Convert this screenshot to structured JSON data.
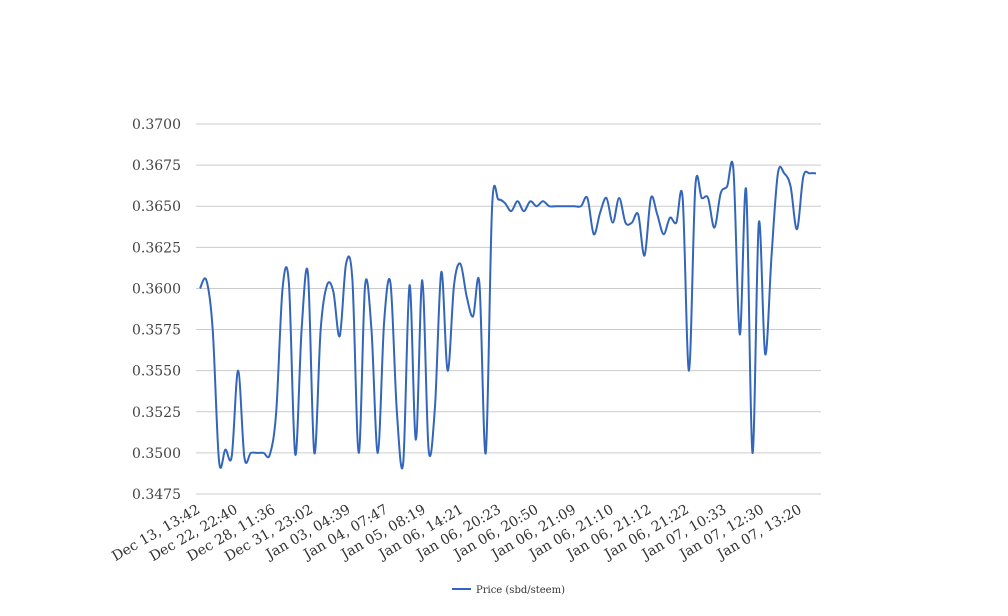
{
  "chart_data": {
    "type": "line",
    "title": "",
    "xlabel": "",
    "ylabel": "",
    "ylim": [
      0.3475,
      0.37
    ],
    "yticks": [
      "0.3475",
      "0.3500",
      "0.3525",
      "0.3550",
      "0.3575",
      "0.3600",
      "0.3625",
      "0.3650",
      "0.3675",
      "0.3700"
    ],
    "grid": "horizontal",
    "legend_position": "bottom",
    "line_color": "#3366bb",
    "xticks": [
      "Dec 13, 13:42",
      "Dec 22, 22:40",
      "Dec 28, 11:36",
      "Dec 31, 23:02",
      "Jan 03, 04:39",
      "Jan 04, 07:47",
      "Jan 05, 08:19",
      "Jan 06, 14:21",
      "Jan 06, 20:23",
      "Jan 06, 20:50",
      "Jan 06, 21:09",
      "Jan 06, 21:10",
      "Jan 06, 21:12",
      "Jan 06, 21:22",
      "Jan 07, 10:33",
      "Jan 07, 12:30",
      "Jan 07, 13:20"
    ],
    "series": [
      {
        "name": "Price (sbd/steem)",
        "values": [
          0.36,
          0.3605,
          0.3575,
          0.3495,
          0.3502,
          0.3498,
          0.355,
          0.3497,
          0.35,
          0.35,
          0.35,
          0.3499,
          0.3525,
          0.36,
          0.3603,
          0.3499,
          0.3575,
          0.3609,
          0.35,
          0.3575,
          0.3602,
          0.3598,
          0.3571,
          0.3615,
          0.3605,
          0.35,
          0.3602,
          0.3575,
          0.35,
          0.358,
          0.3603,
          0.3525,
          0.3494,
          0.3602,
          0.3508,
          0.3605,
          0.3502,
          0.3528,
          0.361,
          0.355,
          0.3602,
          0.3615,
          0.3595,
          0.3583,
          0.3603,
          0.35,
          0.365,
          0.3654,
          0.3652,
          0.3647,
          0.3653,
          0.3647,
          0.3653,
          0.365,
          0.3653,
          0.365,
          0.365,
          0.365,
          0.365,
          0.365,
          0.365,
          0.3655,
          0.3633,
          0.3646,
          0.3655,
          0.364,
          0.3655,
          0.364,
          0.364,
          0.3645,
          0.362,
          0.3655,
          0.3645,
          0.3633,
          0.3643,
          0.364,
          0.3655,
          0.355,
          0.3662,
          0.3655,
          0.3655,
          0.3637,
          0.3658,
          0.3662,
          0.3672,
          0.3572,
          0.366,
          0.35,
          0.364,
          0.356,
          0.362,
          0.367,
          0.367,
          0.3662,
          0.3636,
          0.3668,
          0.367,
          0.367
        ]
      }
    ]
  }
}
